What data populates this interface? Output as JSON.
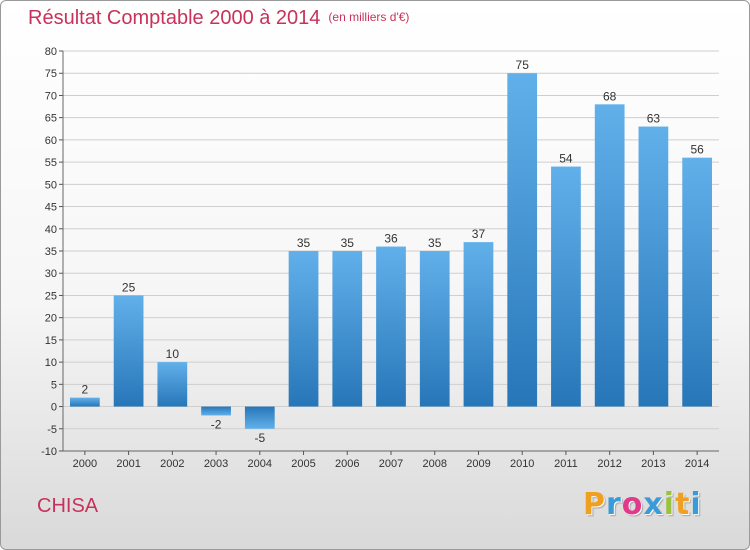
{
  "header": {
    "title": "Résultat Comptable 2000 à 2014",
    "subtitle": "(en milliers d'€)"
  },
  "footer": {
    "commune": "CHISA",
    "logo_letters": [
      "P",
      "r",
      "o",
      "x",
      "i",
      "t",
      "i"
    ],
    "logo_colors": [
      "#f0a020",
      "#3a9bd8",
      "#e23a8a",
      "#3a9bd8",
      "#9ac23c",
      "#f0a020",
      "#3a9bd8"
    ]
  },
  "colors": {
    "title": "#c8325a",
    "bar_light": "#62b0ea",
    "bar_dark": "#2776b8",
    "grid": "#cfcfcf"
  },
  "chart_data": {
    "type": "bar",
    "title": "Résultat Comptable 2000 à 2014",
    "subtitle": "(en milliers d'€)",
    "categories": [
      "2000",
      "2001",
      "2002",
      "2003",
      "2004",
      "2005",
      "2006",
      "2007",
      "2008",
      "2009",
      "2010",
      "2011",
      "2012",
      "2013",
      "2014"
    ],
    "values": [
      2,
      25,
      10,
      -2,
      -5,
      35,
      35,
      36,
      35,
      37,
      75,
      54,
      68,
      63,
      56
    ],
    "ylim": [
      -10,
      80
    ],
    "yticks": [
      -10,
      -5,
      0,
      5,
      10,
      15,
      20,
      25,
      30,
      35,
      40,
      45,
      50,
      55,
      60,
      65,
      70,
      75,
      80
    ],
    "grid": true,
    "data_labels": true
  }
}
